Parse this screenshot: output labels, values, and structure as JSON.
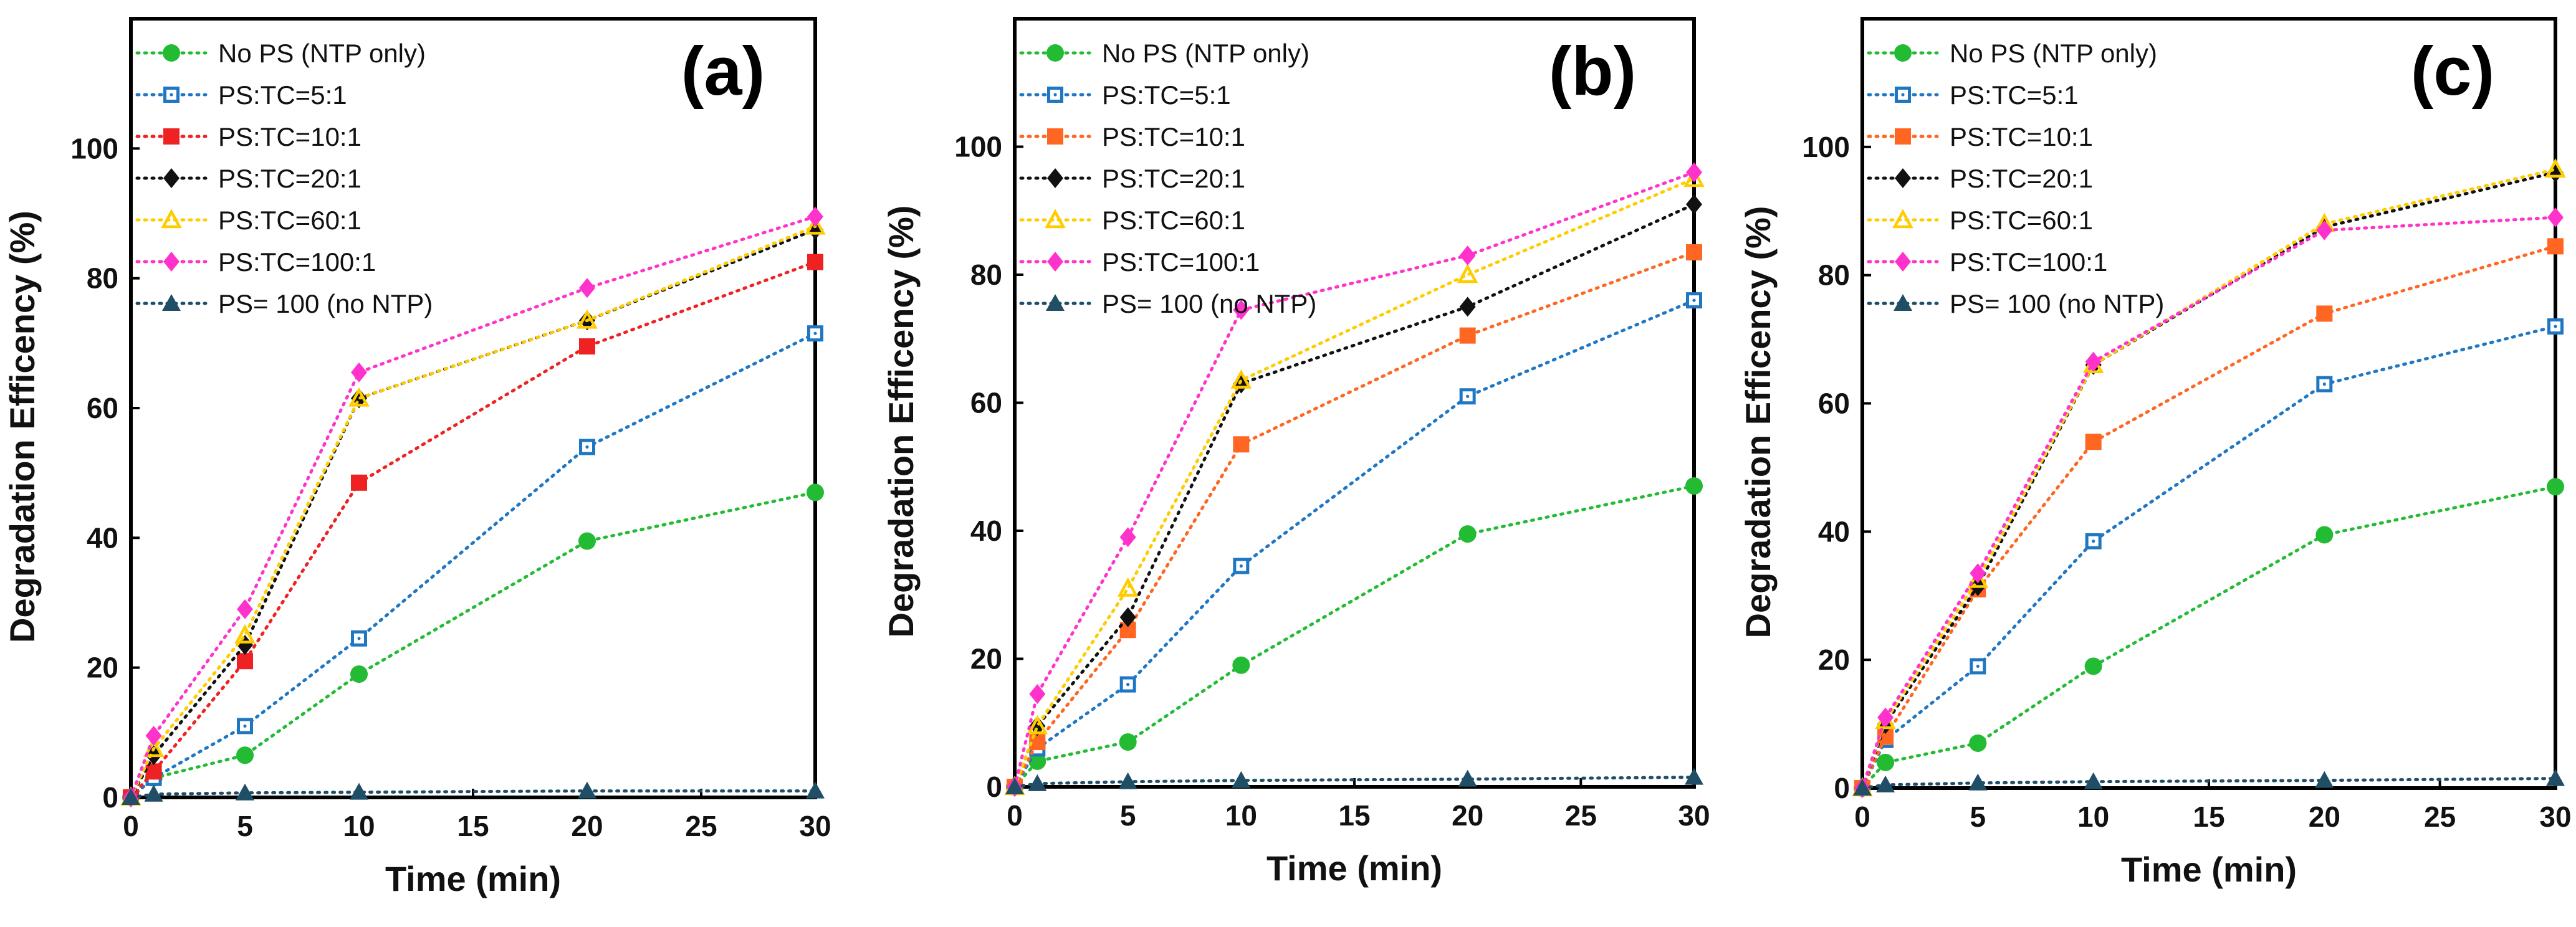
{
  "chart_data": [
    {
      "type": "line",
      "panel_label": "(a)",
      "xlabel": "Time (min)",
      "ylabel": "Degradation Efficency (%)",
      "xlim": [
        0,
        30
      ],
      "ylim": [
        0,
        120
      ],
      "xticks": [
        "0",
        "5",
        "10",
        "15",
        "20",
        "25",
        "30"
      ],
      "yticks": [
        "0",
        "20",
        "40",
        "60",
        "80",
        "100"
      ],
      "x": [
        0,
        1,
        5,
        10,
        20,
        30
      ],
      "legend_position": "top-left",
      "series": [
        {
          "name": "No PS (NTP only)",
          "values": [
            0,
            3,
            6.5,
            19,
            39.5,
            47
          ],
          "color": "#22bb33",
          "marker": "circle"
        },
        {
          "name": "PS:TC=5:1",
          "values": [
            0,
            3,
            11,
            24.5,
            54,
            71.5
          ],
          "color": "#1f77c4",
          "marker": "square-open"
        },
        {
          "name": "PS:TC=10:1",
          "values": [
            0,
            4,
            21,
            48.5,
            69.5,
            82.5
          ],
          "color": "#ee2222",
          "marker": "square"
        },
        {
          "name": "PS:TC=20:1",
          "values": [
            0,
            6.5,
            23.5,
            61.5,
            73.5,
            87.5
          ],
          "color": "#111111",
          "marker": "diamond"
        },
        {
          "name": "PS:TC=60:1",
          "values": [
            0,
            7.5,
            25,
            61.5,
            73.5,
            88
          ],
          "color": "#ffcc00",
          "marker": "triangle-open"
        },
        {
          "name": "PS:TC=100:1",
          "values": [
            0,
            9.5,
            29,
            65.5,
            78.5,
            89.5
          ],
          "color": "#ff33cc",
          "marker": "diamond"
        },
        {
          "name": "PS= 100 (no NTP)",
          "values": [
            0,
            0.5,
            0.7,
            0.8,
            1,
            1
          ],
          "color": "#1f4e66",
          "marker": "triangle"
        }
      ]
    },
    {
      "type": "line",
      "panel_label": "(b)",
      "xlabel": "Time (min)",
      "ylabel": "Degradation Efficency (%)",
      "xlim": [
        0,
        30
      ],
      "ylim": [
        0,
        120
      ],
      "xticks": [
        "0",
        "5",
        "10",
        "15",
        "20",
        "25",
        "30"
      ],
      "yticks": [
        "0",
        "20",
        "40",
        "60",
        "80",
        "100"
      ],
      "x": [
        0,
        1,
        5,
        10,
        20,
        30
      ],
      "legend_position": "top-left",
      "series": [
        {
          "name": "No PS (NTP only)",
          "values": [
            0,
            4,
            7,
            19,
            39.5,
            47
          ],
          "color": "#22bb33",
          "marker": "circle"
        },
        {
          "name": "PS:TC=5:1",
          "values": [
            0,
            6,
            16,
            34.5,
            61,
            76
          ],
          "color": "#1f77c4",
          "marker": "square-open"
        },
        {
          "name": "PS:TC=10:1",
          "values": [
            0,
            7,
            24.5,
            53.5,
            70.5,
            83.5
          ],
          "color": "#ff6622",
          "marker": "square"
        },
        {
          "name": "PS:TC=20:1",
          "values": [
            0,
            9.5,
            26.5,
            63,
            75,
            91
          ],
          "color": "#111111",
          "marker": "diamond"
        },
        {
          "name": "PS:TC=60:1",
          "values": [
            0,
            9.5,
            31,
            63.5,
            80,
            95
          ],
          "color": "#ffcc00",
          "marker": "triangle-open"
        },
        {
          "name": "PS:TC=100:1",
          "values": [
            0,
            14.5,
            39,
            74.5,
            83,
            96
          ],
          "color": "#ff33cc",
          "marker": "diamond"
        },
        {
          "name": "PS= 100 (no NTP)",
          "values": [
            0,
            0.5,
            0.8,
            1,
            1.2,
            1.5
          ],
          "color": "#1f4e66",
          "marker": "triangle"
        }
      ]
    },
    {
      "type": "line",
      "panel_label": "(c)",
      "xlabel": "Time (min)",
      "ylabel": "Degradation Efficency (%)",
      "xlim": [
        0,
        30
      ],
      "ylim": [
        0,
        120
      ],
      "xticks": [
        "0",
        "5",
        "10",
        "15",
        "20",
        "25",
        "30"
      ],
      "yticks": [
        "0",
        "20",
        "40",
        "60",
        "80",
        "100"
      ],
      "x": [
        0,
        1,
        5,
        10,
        20,
        30
      ],
      "legend_position": "top-left",
      "series": [
        {
          "name": "No PS (NTP only)",
          "values": [
            0,
            4,
            7,
            19,
            39.5,
            47
          ],
          "color": "#22bb33",
          "marker": "circle"
        },
        {
          "name": "PS:TC=5:1",
          "values": [
            0,
            7.5,
            19,
            38.5,
            63,
            72
          ],
          "color": "#1f77c4",
          "marker": "square-open"
        },
        {
          "name": "PS:TC=10:1",
          "values": [
            0,
            8,
            31,
            54,
            74,
            84.5
          ],
          "color": "#ff6622",
          "marker": "square"
        },
        {
          "name": "PS:TC=20:1",
          "values": [
            0,
            10,
            31.5,
            66,
            87.5,
            96
          ],
          "color": "#111111",
          "marker": "diamond"
        },
        {
          "name": "PS:TC=60:1",
          "values": [
            0,
            10.5,
            32.5,
            66,
            88,
            96.5
          ],
          "color": "#ffcc00",
          "marker": "triangle-open"
        },
        {
          "name": "PS:TC=100:1",
          "values": [
            0,
            11,
            33.5,
            66.5,
            87,
            89
          ],
          "color": "#ff33cc",
          "marker": "diamond"
        },
        {
          "name": "PS= 100 (no NTP)",
          "values": [
            0,
            0.5,
            0.8,
            1,
            1.2,
            1.5
          ],
          "color": "#1f4e66",
          "marker": "triangle"
        }
      ]
    }
  ]
}
